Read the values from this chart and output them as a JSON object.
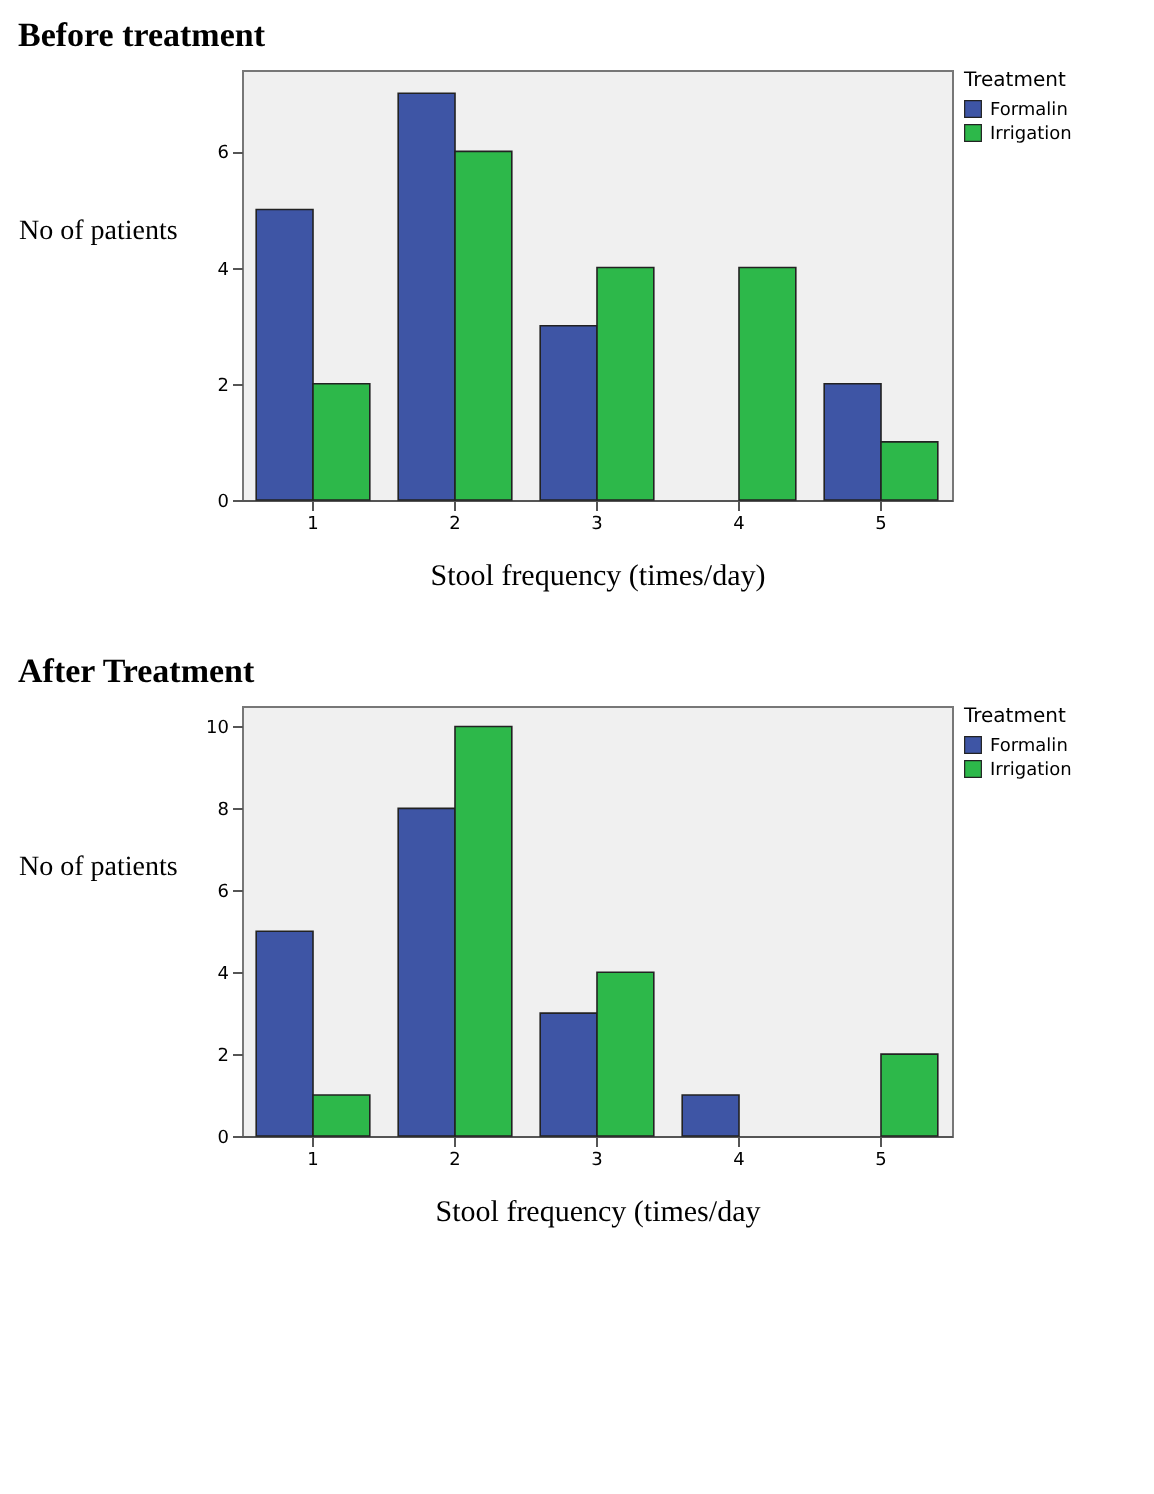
{
  "chart_data": [
    {
      "type": "bar",
      "title": "Before treatment",
      "xlabel": "Stool frequency (times/day)",
      "ylabel": "No of patients",
      "legend_title": "Treatment",
      "legend": "top right",
      "categories": [
        "1",
        "2",
        "3",
        "4",
        "5"
      ],
      "series": [
        {
          "name": "Formalin",
          "color": "#3e55a5",
          "values": [
            5,
            7,
            3,
            null,
            2
          ]
        },
        {
          "name": "Irrigation",
          "color": "#2db84a",
          "values": [
            2,
            6,
            4,
            4,
            1
          ]
        }
      ],
      "ylim": [
        0,
        7.4
      ],
      "yticks": [
        0,
        2,
        4,
        6
      ]
    },
    {
      "type": "bar",
      "title": "After Treatment",
      "xlabel": "Stool frequency (times/day",
      "ylabel": "No of patients",
      "legend_title": "Treatment",
      "legend": "top right",
      "categories": [
        "1",
        "2",
        "3",
        "4",
        "5"
      ],
      "series": [
        {
          "name": "Formalin",
          "color": "#3e55a5",
          "values": [
            5,
            8,
            3,
            1,
            null
          ]
        },
        {
          "name": "Irrigation",
          "color": "#2db84a",
          "values": [
            1,
            10,
            4,
            null,
            2
          ]
        }
      ],
      "ylim": [
        0,
        10.5
      ],
      "yticks": [
        0,
        2,
        4,
        6,
        8,
        10
      ]
    }
  ]
}
